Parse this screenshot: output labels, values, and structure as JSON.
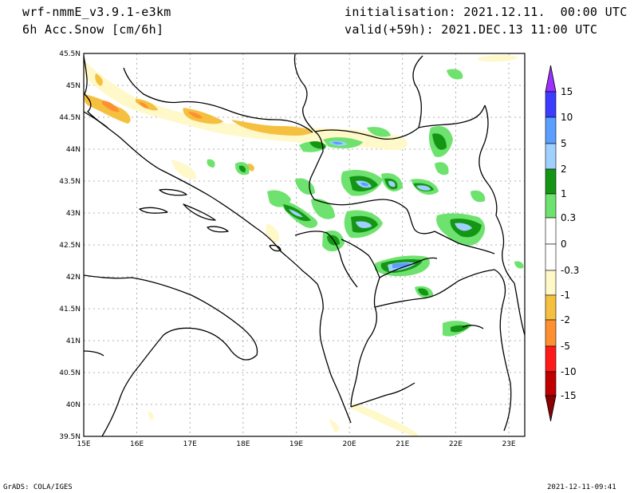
{
  "header": {
    "model": "wrf-nmmE_v3.9.1-e3km",
    "field": "6h Acc.Snow [cm/6h]",
    "init": "initialisation: 2021.12.11.  00:00 UTC",
    "valid": "valid(+59h): 2021.DEC.13 11:00 UTC"
  },
  "footer": {
    "left": "GrADS: COLA/IGES",
    "right": "2021-12-11-09:41"
  },
  "map": {
    "lat_labels": [
      "45.5N",
      "45N",
      "44.5N",
      "44N",
      "43.5N",
      "43N",
      "42.5N",
      "42N",
      "41.5N",
      "41N",
      "40.5N",
      "40N",
      "39.5N"
    ],
    "lon_labels": [
      "15E",
      "16E",
      "17E",
      "18E",
      "19E",
      "20E",
      "21E",
      "22E",
      "23E"
    ],
    "lat_range": [
      39.5,
      45.5
    ],
    "lon_range": [
      15,
      23.3
    ],
    "grid": true
  },
  "colorbar": {
    "labels": [
      "15",
      "10",
      "5",
      "2",
      "1",
      "0.3",
      "0",
      "-0.3",
      "-1",
      "-2",
      "-5",
      "-10",
      "-15"
    ],
    "colors": {
      "top_arrow": "#9b30ff",
      "c10_15": "#3c3cff",
      "c5_10": "#5a9fff",
      "c2_5": "#a0d0ff",
      "c1_2": "#149614",
      "c03_1": "#6ee26e",
      "neutral": "#ffffff",
      "n03_1": "#fff8c8",
      "n1_2": "#f5c040",
      "n2_5": "#ff9030",
      "n5_10": "#ff1a1a",
      "n10_15": "#c00000",
      "bottom_arrow": "#8b0000"
    }
  }
}
